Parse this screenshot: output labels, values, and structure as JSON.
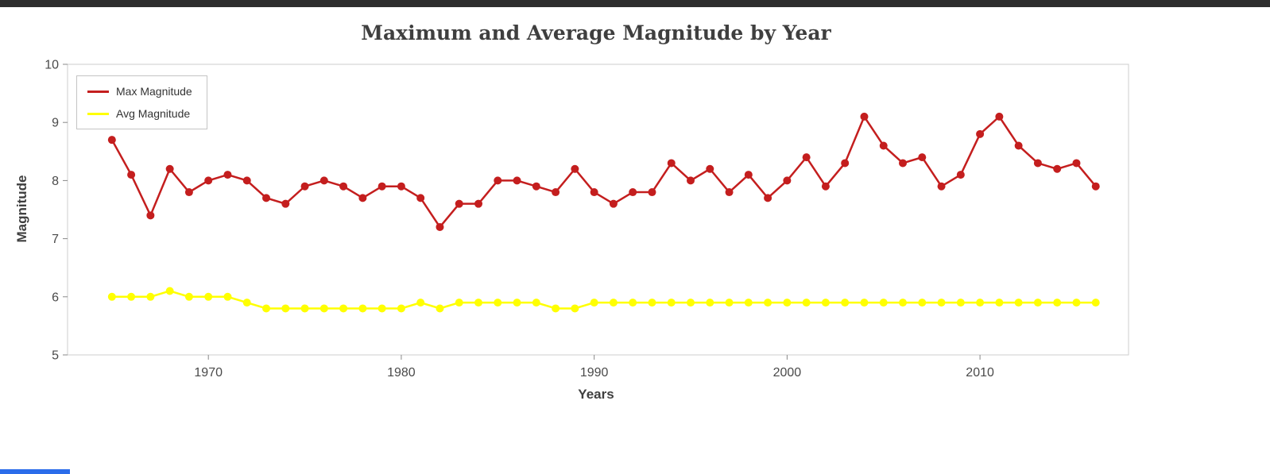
{
  "page": {
    "background": "#ffffff"
  },
  "chrome": {
    "top_strip_color": "#2e2e2e",
    "bottom_left_fragment_color": "#2a6cea"
  },
  "chart_data": {
    "type": "line",
    "title": "Maximum and Average Magnitude by Year",
    "xlabel": "Years",
    "ylabel": "Magnitude",
    "x": [
      1965,
      1966,
      1967,
      1968,
      1969,
      1970,
      1971,
      1972,
      1973,
      1974,
      1975,
      1976,
      1977,
      1978,
      1979,
      1980,
      1981,
      1982,
      1983,
      1984,
      1985,
      1986,
      1987,
      1988,
      1989,
      1990,
      1991,
      1992,
      1993,
      1994,
      1995,
      1996,
      1997,
      1998,
      1999,
      2000,
      2001,
      2002,
      2003,
      2004,
      2005,
      2006,
      2007,
      2008,
      2009,
      2010,
      2011,
      2012,
      2013,
      2014,
      2015,
      2016
    ],
    "series": [
      {
        "name": "Max Magnitude",
        "color": "#c41e1e",
        "values": [
          8.7,
          8.1,
          7.4,
          8.2,
          7.8,
          8.0,
          8.1,
          8.0,
          7.7,
          7.6,
          7.9,
          8.0,
          7.9,
          7.7,
          7.9,
          7.9,
          7.7,
          7.2,
          7.6,
          7.6,
          8.0,
          8.0,
          7.9,
          7.8,
          8.2,
          7.8,
          7.6,
          7.8,
          7.8,
          8.3,
          8.0,
          8.2,
          7.8,
          8.1,
          7.7,
          8.0,
          8.4,
          7.9,
          8.3,
          9.1,
          8.6,
          8.3,
          8.4,
          7.9,
          8.1,
          8.8,
          9.1,
          8.6,
          8.3,
          8.2,
          8.3,
          7.9
        ]
      },
      {
        "name": "Avg Magnitude",
        "color": "#ffff00",
        "values": [
          6.0,
          6.0,
          6.0,
          6.1,
          6.0,
          6.0,
          6.0,
          5.9,
          5.8,
          5.8,
          5.8,
          5.8,
          5.8,
          5.8,
          5.8,
          5.8,
          5.9,
          5.8,
          5.9,
          5.9,
          5.9,
          5.9,
          5.9,
          5.8,
          5.8,
          5.9,
          5.9,
          5.9,
          5.9,
          5.9,
          5.9,
          5.9,
          5.9,
          5.9,
          5.9,
          5.9,
          5.9,
          5.9,
          5.9,
          5.9,
          5.9,
          5.9,
          5.9,
          5.9,
          5.9,
          5.9,
          5.9,
          5.9,
          5.9,
          5.9,
          5.9,
          5.9
        ]
      }
    ],
    "ylim": [
      5,
      10
    ],
    "yticks": [
      5,
      6,
      7,
      8,
      9,
      10
    ],
    "xticks": [
      1970,
      1980,
      1990,
      2000,
      2010
    ],
    "xlim": [
      1962.7,
      2017.7
    ],
    "grid": false,
    "legend_position": "top-left",
    "plot_border_color": "#cccccc",
    "tick_color": "#888888"
  }
}
